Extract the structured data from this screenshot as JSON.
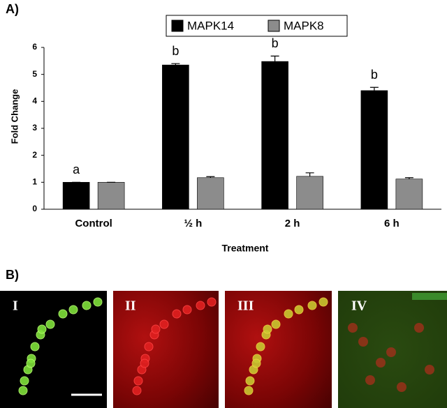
{
  "chart_data": {
    "type": "bar",
    "panel_label": "A)",
    "x_label": "Treatment",
    "y_label": "Fold Change",
    "categories": [
      "Control",
      "½ h",
      "2 h",
      "6 h"
    ],
    "series": [
      {
        "name": "MAPK14",
        "color": "#000000",
        "values": [
          1.0,
          5.35,
          5.48,
          4.4
        ],
        "errors": [
          0,
          0.05,
          0.2,
          0.12
        ]
      },
      {
        "name": "MAPK8",
        "color": "#8c8c8c",
        "values": [
          1.0,
          1.17,
          1.22,
          1.12
        ],
        "errors": [
          0,
          0.04,
          0.13,
          0.05
        ]
      }
    ],
    "significance_letters": [
      "a",
      "b",
      "b",
      "b"
    ],
    "ylim": [
      0,
      6
    ],
    "yticks": [
      0,
      1,
      2,
      3,
      4,
      5,
      6
    ],
    "legend": "top"
  },
  "panel_b": {
    "label": "B)",
    "images": [
      "I",
      "II",
      "III",
      "IV"
    ]
  }
}
